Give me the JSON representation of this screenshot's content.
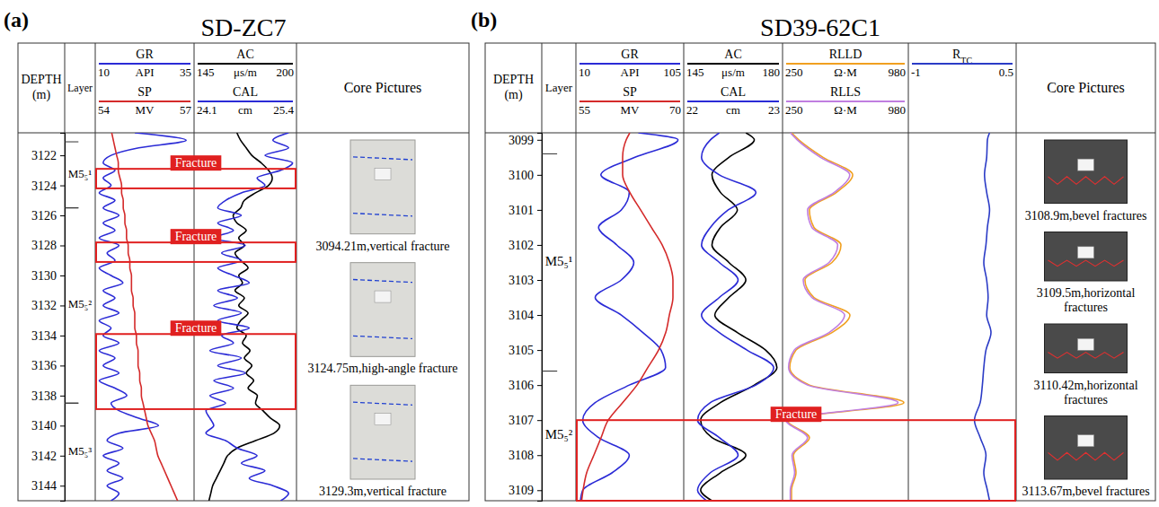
{
  "chart_data": [
    {
      "type": "well_log",
      "panel_label": "(a)",
      "title": "SD-ZC7",
      "depth_label": [
        "DEPTH",
        "(m)"
      ],
      "layer_label": "Layer",
      "core_label": "Core Pictures",
      "ylim": [
        3120.5,
        3145
      ],
      "yticks": [
        3122,
        3124,
        3126,
        3128,
        3130,
        3132,
        3134,
        3136,
        3138,
        3140,
        3142,
        3144
      ],
      "depths": [
        3120.5,
        3121,
        3121.5,
        3122,
        3122.5,
        3123,
        3123.5,
        3124,
        3124.5,
        3125,
        3125.5,
        3126,
        3126.5,
        3127,
        3127.5,
        3128,
        3128.5,
        3129,
        3129.5,
        3130,
        3130.5,
        3131,
        3131.5,
        3132,
        3132.5,
        3133,
        3133.5,
        3134,
        3134.5,
        3135,
        3135.5,
        3136,
        3136.5,
        3137,
        3137.5,
        3138,
        3138.5,
        3139,
        3139.5,
        3140,
        3140.5,
        3141,
        3141.5,
        3142,
        3142.5,
        3143,
        3143.5,
        3144,
        3144.5,
        3145
      ],
      "layers": [
        {
          "label": "M5₅¹",
          "top": 3121.1,
          "bottom": 3125.5
        },
        {
          "label": "M5₅²",
          "top": 3125.5,
          "bottom": 3138.5
        },
        {
          "label": "M5₅³",
          "top": 3138.5,
          "bottom": 3145
        }
      ],
      "tracks": [
        {
          "curves": [
            {
              "name": "GR",
              "unit": "API",
              "xlim": [
                10,
                35
              ],
              "xticks": [
                10,
                35
              ],
              "color": "#2b2bd6",
              "values": [
                20,
                33,
                21,
                14,
                12,
                15,
                12,
                14,
                11,
                15,
                12,
                16,
                12,
                15,
                11,
                16,
                13,
                15,
                11,
                14,
                17,
                12,
                15,
                12,
                16,
                11,
                14,
                12,
                16,
                11,
                15,
                12,
                16,
                11,
                15,
                18,
                14,
                16,
                21,
                26,
                16,
                13,
                17,
                12,
                16,
                13,
                17,
                13,
                16,
                14
              ]
            },
            {
              "name": "SP",
              "unit": "MV",
              "xlim": [
                54,
                57
              ],
              "xticks": [
                54,
                57
              ],
              "color": "#d42a2a",
              "values": [
                54.5,
                54.55,
                54.6,
                54.65,
                54.7,
                54.7,
                54.75,
                54.8,
                54.8,
                54.85,
                54.85,
                54.9,
                54.9,
                54.95,
                54.95,
                55,
                55,
                55.05,
                55.05,
                55.1,
                55.1,
                55.1,
                55.15,
                55.15,
                55.2,
                55.2,
                55.2,
                55.25,
                55.25,
                55.3,
                55.3,
                55.3,
                55.35,
                55.35,
                55.4,
                55.4,
                55.45,
                55.5,
                55.55,
                55.6,
                55.7,
                55.8,
                55.85,
                55.9,
                56,
                56.1,
                56.2,
                56.3,
                56.4,
                56.5
              ]
            }
          ]
        },
        {
          "curves": [
            {
              "name": "AC",
              "unit": "μs/m",
              "xlim": [
                145,
                200
              ],
              "xticks": [
                145,
                200
              ],
              "color": "#000000",
              "values": [
                168,
                170,
                173,
                176,
                181,
                185,
                187,
                185,
                178,
                172,
                170,
                166,
                168,
                173,
                169,
                172,
                167,
                170,
                174,
                169,
                171,
                167,
                172,
                169,
                174,
                170,
                168,
                173,
                171,
                175,
                172,
                176,
                173,
                177,
                174,
                179,
                178,
                182,
                186,
                191,
                188,
                178,
                168,
                163,
                161,
                159,
                157,
                155,
                154,
                153
              ]
            },
            {
              "name": "CAL",
              "unit": "cm",
              "xlim": [
                24.1,
                25.4
              ],
              "xticks": [
                24.1,
                25.4
              ],
              "color": "#2b2bd6",
              "values": [
                25.3,
                25.1,
                25.3,
                25.0,
                25.35,
                25.2,
                24.9,
                25.0,
                24.7,
                24.5,
                24.4,
                24.7,
                24.4,
                24.6,
                24.35,
                24.75,
                24.45,
                24.7,
                24.4,
                24.6,
                24.8,
                24.4,
                24.65,
                24.35,
                24.7,
                24.4,
                24.8,
                24.45,
                24.6,
                24.3,
                24.7,
                24.4,
                24.75,
                24.35,
                24.6,
                24.3,
                24.5,
                24.25,
                24.3,
                24.35,
                24.25,
                24.5,
                24.65,
                24.9,
                24.7,
                25.0,
                24.8,
                25.1,
                25.3,
                25.2
              ]
            }
          ]
        }
      ],
      "fractures": [
        {
          "label": "Fracture",
          "top": 3122.9,
          "bottom": 3124.2
        },
        {
          "label": "Fracture",
          "top": 3127.8,
          "bottom": 3129.1
        },
        {
          "label": "Fracture",
          "top": 3133.9,
          "bottom": 3138.9
        }
      ],
      "cores": [
        {
          "caption": "3094.21m,vertical fracture"
        },
        {
          "caption": "3124.75m,high-angle fracture"
        },
        {
          "caption": "3129.3m,vertical fracture"
        }
      ]
    },
    {
      "type": "well_log",
      "panel_label": "(b)",
      "title": "SD39-62C1",
      "depth_label": [
        "DEPTH",
        "(m)"
      ],
      "layer_label": "Layer",
      "core_label": "Core Pictures",
      "ylim": [
        3098.8,
        3109.3
      ],
      "yticks": [
        3099,
        3100,
        3101,
        3102,
        3103,
        3104,
        3105,
        3106,
        3107,
        3108,
        3109
      ],
      "depths": [
        3098.8,
        3099,
        3099.5,
        3100,
        3100.5,
        3101,
        3101.5,
        3102,
        3102.5,
        3103,
        3103.5,
        3104,
        3104.5,
        3105,
        3105.5,
        3106,
        3106.5,
        3107,
        3107.5,
        3108,
        3108.5,
        3109,
        3109.3
      ],
      "layers": [
        {
          "label": "M5₅¹",
          "top": 3099.4,
          "bottom": 3105.6
        },
        {
          "label": "M5₅²",
          "top": 3105.6,
          "bottom": 3109.3
        }
      ],
      "tracks": [
        {
          "curves": [
            {
              "name": "GR",
              "unit": "API",
              "xlim": [
                10,
                105
              ],
              "xticks": [
                10,
                105
              ],
              "color": "#2b2bd6",
              "values": [
                65,
                100,
                62,
                32,
                57,
                50,
                30,
                46,
                61,
                50,
                27,
                50,
                69,
                85,
                89,
                57,
                27,
                16,
                30,
                57,
                42,
                16,
                14
              ]
            },
            {
              "name": "SP",
              "unit": "MV",
              "xlim": [
                55,
                70
              ],
              "xticks": [
                55,
                70
              ],
              "color": "#d42a2a",
              "values": [
                62.5,
                62,
                61.5,
                61.5,
                62.5,
                64,
                65.5,
                67,
                68,
                68.5,
                68.5,
                68,
                67.5,
                66.5,
                65,
                63.5,
                61.5,
                59.5,
                58.5,
                57.5,
                56.5,
                56,
                55.8
              ]
            }
          ]
        },
        {
          "curves": [
            {
              "name": "AC",
              "unit": "μs/m",
              "xlim": [
                145,
                180
              ],
              "xticks": [
                145,
                180
              ],
              "color": "#000000",
              "values": [
                167,
                170,
                161,
                155,
                158,
                164,
                158,
                155,
                161,
                167,
                161,
                156,
                164,
                174,
                178,
                170,
                158,
                151,
                155,
                167,
                158,
                151,
                155
              ]
            },
            {
              "name": "CAL",
              "unit": "cm",
              "xlim": [
                22,
                23
              ],
              "xticks": [
                22,
                23
              ],
              "color": "#2b2bd6",
              "values": [
                22.36,
                22.27,
                22.18,
                22.36,
                22.73,
                22.45,
                22.27,
                22.18,
                22.36,
                22.55,
                22.36,
                22.18,
                22.36,
                22.64,
                22.91,
                22.73,
                22.27,
                22.14,
                22.36,
                22.55,
                22.27,
                22.14,
                22.23
              ]
            }
          ]
        },
        {
          "curves": [
            {
              "name": "RLLD",
              "unit": "Ω·M",
              "xlim": [
                250,
                980
              ],
              "xticks": [
                250,
                980
              ],
              "color": "#f0a020",
              "values": [
                302,
                344,
                485,
                657,
                563,
                406,
                432,
                589,
                537,
                380,
                432,
                641,
                537,
                328,
                292,
                406,
                954,
                276,
                406,
                313,
                328,
                302,
                302
              ]
            },
            {
              "name": "RLLS",
              "unit": "Ω·M",
              "xlim": [
                250,
                980
              ],
              "xticks": [
                250,
                980
              ],
              "color": "#c07ee0",
              "values": [
                295,
                335,
                470,
                640,
                550,
                395,
                420,
                570,
                520,
                370,
                420,
                610,
                520,
                318,
                285,
                395,
                920,
                270,
                395,
                305,
                320,
                295,
                295
              ]
            }
          ]
        },
        {
          "curves": [
            {
              "name": "R",
              "subscript": "TC",
              "xlim": [
                -1,
                0.5
              ],
              "xticks": [
                -1,
                0.5
              ],
              "color": "#2b3bc6",
              "values": [
                0.13,
                0.1,
                0.09,
                0.06,
                0.09,
                0.13,
                0.1,
                0.08,
                0.05,
                0.09,
                0.11,
                0.09,
                0.15,
                0.08,
                0.05,
                0.03,
                0,
                -0.08,
                0,
                0.08,
                0.05,
                0.1,
                0.13
              ]
            }
          ]
        }
      ],
      "fractures": [
        {
          "label": "Fracture",
          "top": 3107,
          "bottom": 3109.3
        }
      ],
      "cores": [
        {
          "caption": "3108.9m,bevel fractures"
        },
        {
          "caption": "3109.5m,horizontal fractures"
        },
        {
          "caption": "3110.42m,horizontal fractures"
        },
        {
          "caption": "3113.67m,bevel fractures"
        }
      ]
    }
  ]
}
